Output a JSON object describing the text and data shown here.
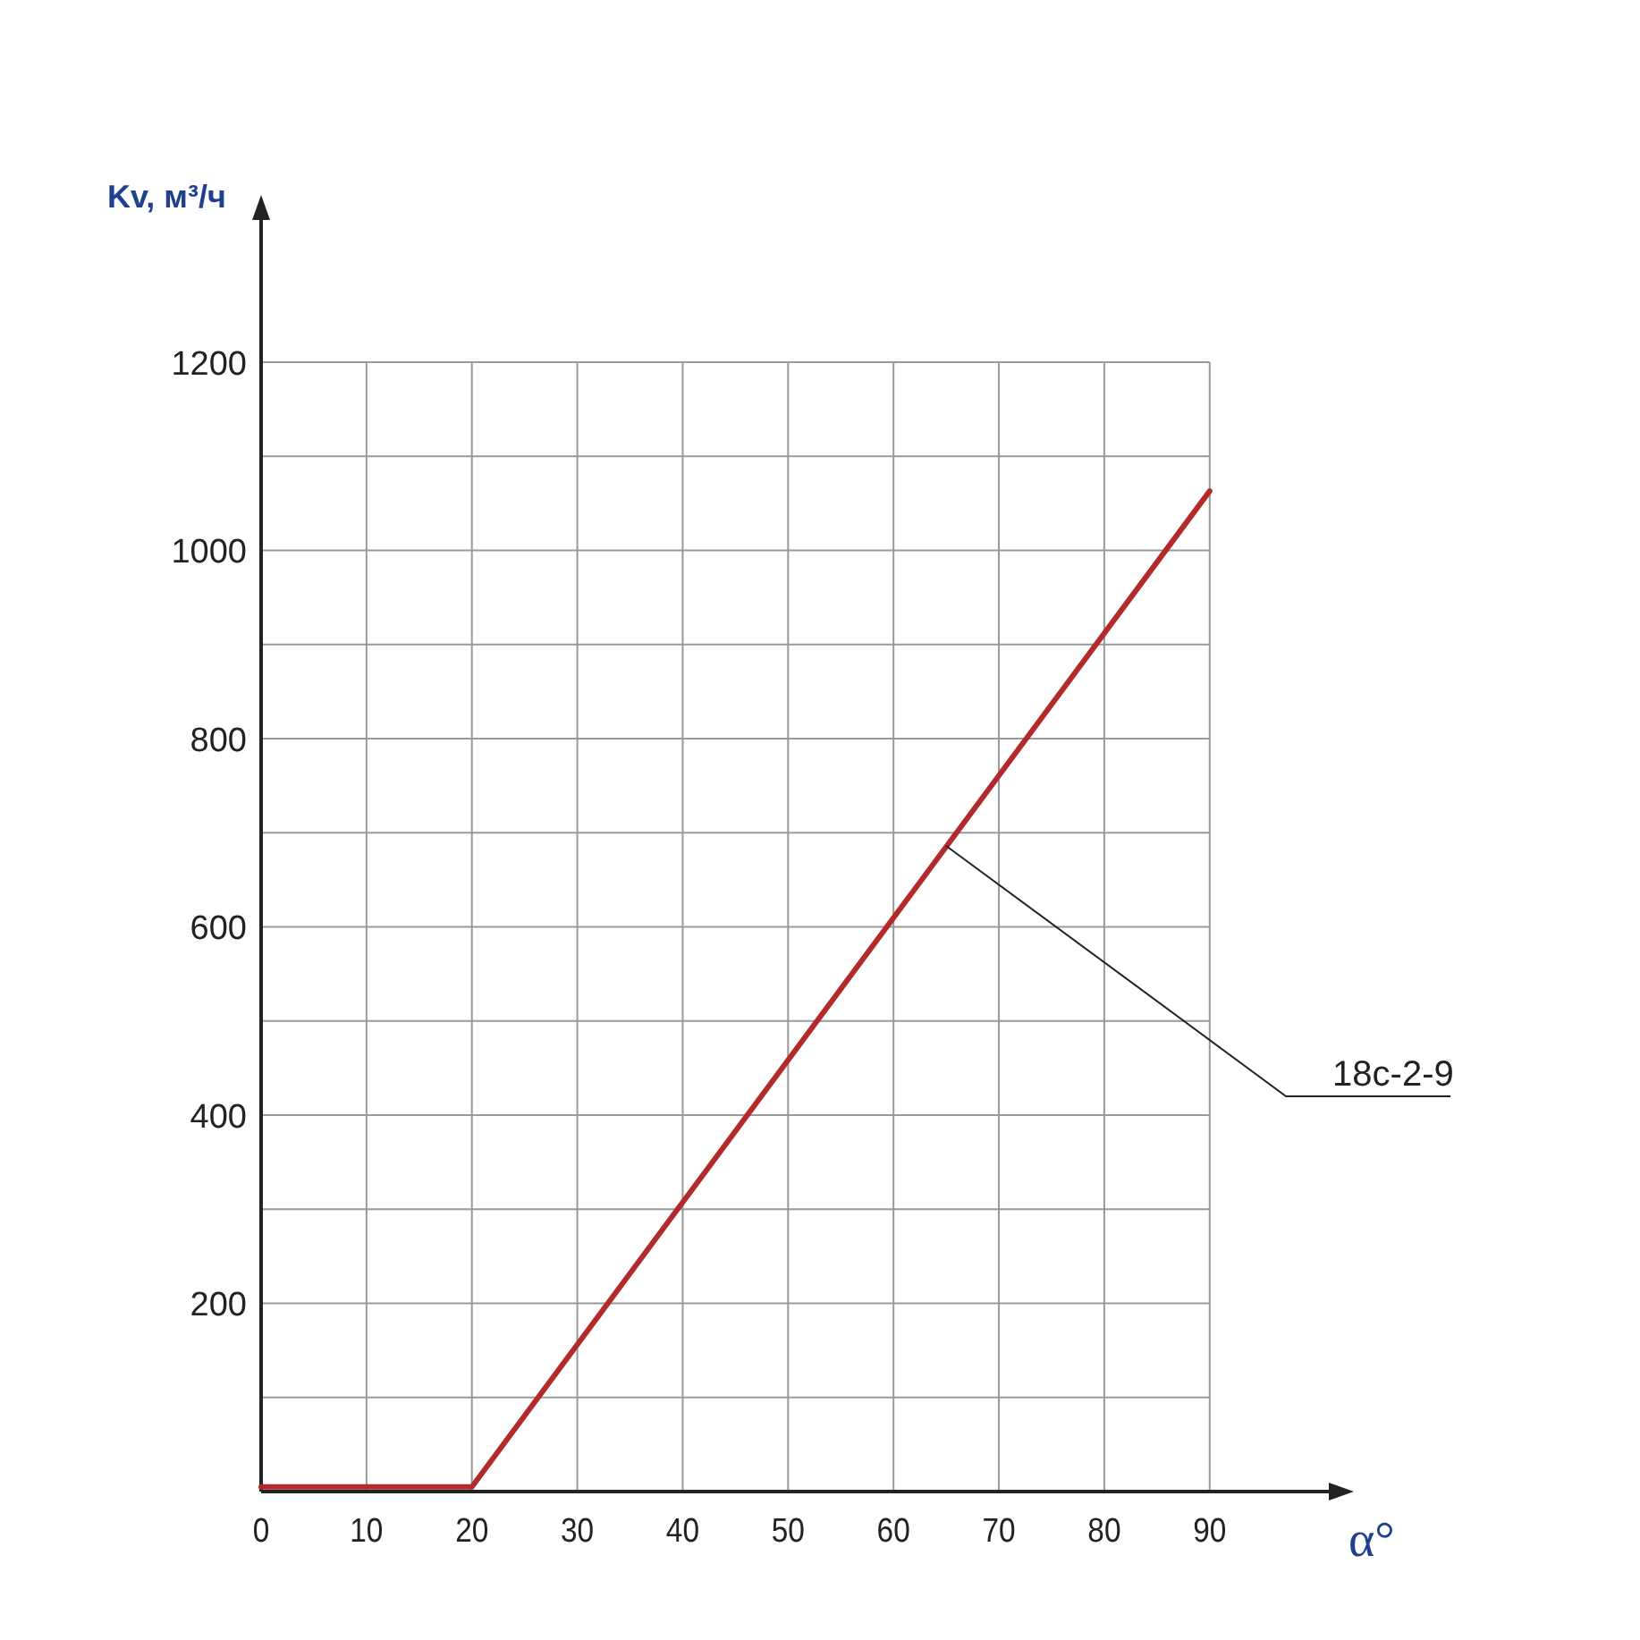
{
  "chart_data": {
    "type": "line",
    "xlabel": "α°",
    "ylabel": "Kv, м³/ч",
    "x": [
      0,
      20,
      90
    ],
    "series": [
      {
        "color": "#b22a2a",
        "values": [
          5,
          5,
          1063
        ]
      }
    ],
    "xlim": [
      0,
      103
    ],
    "ylim": [
      0,
      1370
    ],
    "xticks": [
      0,
      10,
      20,
      30,
      40,
      50,
      60,
      70,
      80,
      90
    ],
    "yticks": [
      {
        "value": 0,
        "label": null
      },
      {
        "value": 100,
        "label": null
      },
      200,
      {
        "value": 300,
        "label": null
      },
      400,
      {
        "value": 500,
        "label": null
      },
      600,
      {
        "value": 700,
        "label": null
      },
      800,
      {
        "value": 900,
        "label": null
      },
      1000,
      {
        "value": 1100,
        "label": null
      },
      1200
    ],
    "grid": true,
    "marker": "none",
    "line_style": "solid",
    "annotations": [
      {
        "text": "18c-2-9",
        "x": 65,
        "y": 686
      }
    ]
  }
}
